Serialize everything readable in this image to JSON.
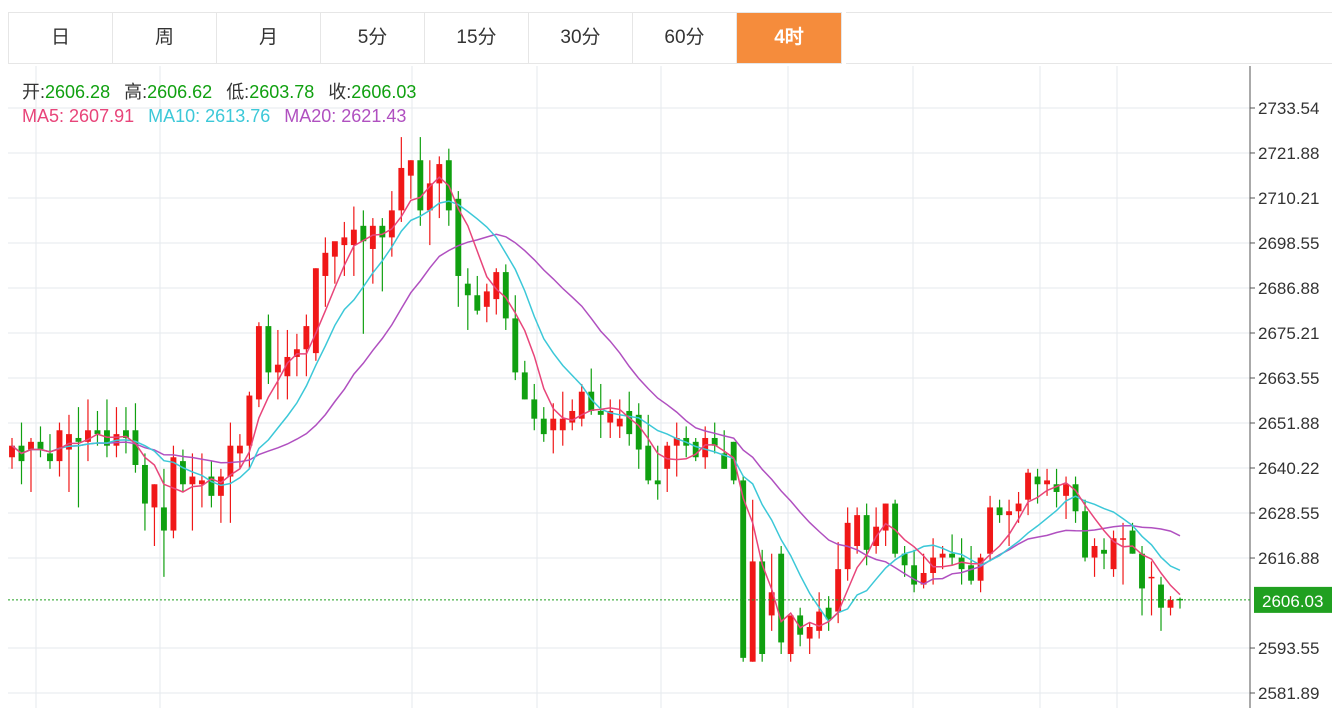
{
  "tabs": [
    {
      "label": "日"
    },
    {
      "label": "周"
    },
    {
      "label": "月"
    },
    {
      "label": "5分"
    },
    {
      "label": "15分"
    },
    {
      "label": "30分"
    },
    {
      "label": "60分"
    },
    {
      "label": "4时"
    }
  ],
  "active_tab": 7,
  "ohlc": {
    "open_label": "开:",
    "open": "2606.28",
    "high_label": "高:",
    "high": "2606.62",
    "low_label": "低:",
    "low": "2603.78",
    "close_label": "收:",
    "close": "2606.03"
  },
  "ma": {
    "ma5_label": "MA5:",
    "ma5": "2607.91",
    "ma10_label": "MA10:",
    "ma10": "2613.76",
    "ma20_label": "MA20:",
    "ma20": "2621.43"
  },
  "colors": {
    "up": "#f01818",
    "down": "#10a010",
    "ma5": "#e8457a",
    "ma10": "#3cc8d8",
    "ma20": "#b050c0",
    "grid": "#e6eaee",
    "axis": "#333333",
    "active_tab": "#f58c3c",
    "price_tag": "#20a020",
    "value_text": "#10a010"
  },
  "chart_data": {
    "type": "candlestick",
    "ylim": [
      2578,
      2740
    ],
    "y_ticks": [
      "2733.54",
      "2721.88",
      "2710.21",
      "2698.55",
      "2686.88",
      "2675.21",
      "2663.55",
      "2651.88",
      "2640.22",
      "2628.55",
      "2616.88",
      "2606.03",
      "2593.55",
      "2581.89"
    ],
    "last_price": 2606.03,
    "candles": [
      [
        2643,
        2648,
        2640,
        2646
      ],
      [
        2646,
        2652,
        2636,
        2642
      ],
      [
        2645,
        2648,
        2634,
        2647
      ],
      [
        2647,
        2651,
        2643,
        2645
      ],
      [
        2644,
        2649,
        2640,
        2642
      ],
      [
        2642,
        2652,
        2638,
        2650
      ],
      [
        2645,
        2654,
        2634,
        2649
      ],
      [
        2648,
        2656,
        2630,
        2647
      ],
      [
        2647,
        2658,
        2642,
        2650
      ],
      [
        2650,
        2655,
        2646,
        2649
      ],
      [
        2650,
        2658,
        2643,
        2646
      ],
      [
        2646,
        2656,
        2643,
        2649
      ],
      [
        2650,
        2656,
        2644,
        2648
      ],
      [
        2650,
        2657,
        2639,
        2641
      ],
      [
        2641,
        2644,
        2624,
        2631
      ],
      [
        2630,
        2636,
        2620,
        2636
      ],
      [
        2630,
        2640,
        2612,
        2624
      ],
      [
        2624,
        2646,
        2622,
        2643
      ],
      [
        2642,
        2645,
        2634,
        2636
      ],
      [
        2636,
        2644,
        2624,
        2638
      ],
      [
        2636,
        2644,
        2630,
        2637
      ],
      [
        2638,
        2642,
        2630,
        2633
      ],
      [
        2633,
        2640,
        2626,
        2638
      ],
      [
        2638,
        2652,
        2626,
        2646
      ],
      [
        2644,
        2649,
        2640,
        2646
      ],
      [
        2646,
        2660,
        2640,
        2659
      ],
      [
        2658,
        2678,
        2656,
        2677
      ],
      [
        2677,
        2680,
        2662,
        2665
      ],
      [
        2665,
        2676,
        2658,
        2667
      ],
      [
        2664,
        2676,
        2658,
        2669
      ],
      [
        2669,
        2675,
        2664,
        2671
      ],
      [
        2671,
        2680,
        2664,
        2677
      ],
      [
        2670,
        2692,
        2668,
        2692
      ],
      [
        2690,
        2700,
        2682,
        2696
      ],
      [
        2695,
        2698,
        2688,
        2699
      ],
      [
        2698,
        2704,
        2690,
        2700
      ],
      [
        2698,
        2708,
        2690,
        2702
      ],
      [
        2703,
        2707,
        2675,
        2699
      ],
      [
        2697,
        2705,
        2688,
        2703
      ],
      [
        2703,
        2705,
        2686,
        2700
      ],
      [
        2700,
        2712,
        2695,
        2707
      ],
      [
        2707,
        2726,
        2704,
        2718
      ],
      [
        2716,
        2720,
        2710,
        2720
      ],
      [
        2720,
        2726,
        2703,
        2707
      ],
      [
        2707,
        2720,
        2698,
        2714
      ],
      [
        2714,
        2721,
        2705,
        2719
      ],
      [
        2720,
        2723,
        2703,
        2707
      ],
      [
        2710,
        2712,
        2682,
        2690
      ],
      [
        2688,
        2692,
        2676,
        2685
      ],
      [
        2685,
        2690,
        2680,
        2681
      ],
      [
        2682,
        2688,
        2678,
        2686
      ],
      [
        2684,
        2692,
        2680,
        2691
      ],
      [
        2691,
        2693,
        2676,
        2679
      ],
      [
        2679,
        2685,
        2663,
        2665
      ],
      [
        2665,
        2668,
        2658,
        2658
      ],
      [
        2658,
        2662,
        2650,
        2653
      ],
      [
        2653,
        2656,
        2647,
        2649
      ],
      [
        2650,
        2657,
        2644,
        2653
      ],
      [
        2650,
        2660,
        2646,
        2653
      ],
      [
        2652,
        2658,
        2650,
        2655
      ],
      [
        2653,
        2662,
        2651,
        2660
      ],
      [
        2660,
        2666,
        2654,
        2655
      ],
      [
        2655,
        2662,
        2648,
        2654
      ],
      [
        2652,
        2658,
        2648,
        2655
      ],
      [
        2651,
        2658,
        2648,
        2653
      ],
      [
        2655,
        2660,
        2646,
        2649
      ],
      [
        2654,
        2657,
        2640,
        2645
      ],
      [
        2646,
        2654,
        2636,
        2637
      ],
      [
        2637,
        2646,
        2632,
        2636
      ],
      [
        2640,
        2647,
        2634,
        2646
      ],
      [
        2646,
        2652,
        2638,
        2648
      ],
      [
        2648,
        2651,
        2643,
        2646
      ],
      [
        2647,
        2648,
        2642,
        2643
      ],
      [
        2643,
        2651,
        2640,
        2648
      ],
      [
        2648,
        2652,
        2644,
        2646
      ],
      [
        2644,
        2650,
        2640,
        2640
      ],
      [
        2647,
        2647,
        2636,
        2637
      ],
      [
        2637,
        2638,
        2590,
        2591
      ],
      [
        2590,
        2632,
        2590,
        2616
      ],
      [
        2616,
        2619,
        2590,
        2592
      ],
      [
        2602,
        2618,
        2598,
        2608
      ],
      [
        2618,
        2620,
        2592,
        2595
      ],
      [
        2592,
        2602,
        2590,
        2602
      ],
      [
        2602,
        2604,
        2594,
        2597
      ],
      [
        2596,
        2600,
        2592,
        2599
      ],
      [
        2598,
        2608,
        2596,
        2603
      ],
      [
        2604,
        2607,
        2598,
        2601
      ],
      [
        2603,
        2621,
        2600,
        2614
      ],
      [
        2614,
        2630,
        2611,
        2626
      ],
      [
        2620,
        2630,
        2618,
        2628
      ],
      [
        2628,
        2631,
        2615,
        2619
      ],
      [
        2620,
        2630,
        2618,
        2625
      ],
      [
        2624,
        2631,
        2620,
        2631
      ],
      [
        2631,
        2632,
        2617,
        2618
      ],
      [
        2618,
        2620,
        2612,
        2615
      ],
      [
        2615,
        2619,
        2608,
        2610
      ],
      [
        2610,
        2618,
        2609,
        2613
      ],
      [
        2613,
        2622,
        2610,
        2617
      ],
      [
        2617,
        2620,
        2614,
        2618
      ],
      [
        2618,
        2623,
        2615,
        2617
      ],
      [
        2617,
        2622,
        2610,
        2614
      ],
      [
        2615,
        2620,
        2610,
        2611
      ],
      [
        2611,
        2618,
        2608,
        2617
      ],
      [
        2618,
        2633,
        2616,
        2630
      ],
      [
        2630,
        2632,
        2626,
        2628
      ],
      [
        2628,
        2632,
        2620,
        2629
      ],
      [
        2629,
        2634,
        2626,
        2631
      ],
      [
        2632,
        2640,
        2628,
        2639
      ],
      [
        2638,
        2640,
        2631,
        2636
      ],
      [
        2636,
        2640,
        2633,
        2637
      ],
      [
        2636,
        2640,
        2630,
        2634
      ],
      [
        2633,
        2638,
        2627,
        2636
      ],
      [
        2636,
        2638,
        2626,
        2629
      ],
      [
        2629,
        2632,
        2616,
        2617
      ],
      [
        2617,
        2622,
        2612,
        2620
      ],
      [
        2619,
        2622,
        2614,
        2618
      ],
      [
        2614,
        2624,
        2612,
        2622
      ],
      [
        2622,
        2626,
        2610,
        2622
      ],
      [
        2624,
        2626,
        2618,
        2618
      ],
      [
        2618,
        2620,
        2602,
        2609
      ],
      [
        2612,
        2616,
        2602,
        2612
      ],
      [
        2610,
        2612,
        2598,
        2604
      ],
      [
        2604,
        2607,
        2602,
        2606
      ],
      [
        2606.28,
        2606.62,
        2603.78,
        2606.03
      ]
    ]
  }
}
